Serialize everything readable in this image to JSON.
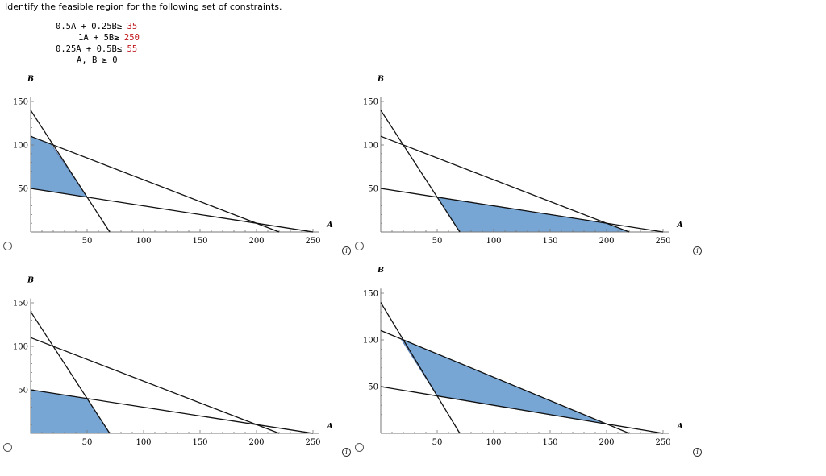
{
  "question": "Identify the feasible region for the following set of constraints.",
  "constraints": [
    {
      "lhs": "0.5A + 0.25B",
      "rel": "≥",
      "rhs": "35"
    },
    {
      "lhs": "1A + 5B",
      "rel": "≥",
      "rhs": "250"
    },
    {
      "lhs": "0.25A + 0.5B",
      "rel": "≤",
      "rhs": "55"
    },
    {
      "lhs": "A, B",
      "rel": "≥",
      "rhs": "0"
    }
  ],
  "options": [
    {
      "selected": false,
      "info_icon": "info-icon"
    },
    {
      "selected": false,
      "info_icon": "info-icon"
    },
    {
      "selected": false,
      "info_icon": "info-icon"
    },
    {
      "selected": false,
      "info_icon": "info-icon"
    }
  ],
  "chart_data": [
    {
      "type": "line",
      "xlabel": "A",
      "ylabel": "B",
      "xlim": [
        0,
        255
      ],
      "ylim": [
        0,
        155
      ],
      "xticks": [
        50,
        100,
        150,
        200,
        250
      ],
      "yticks": [
        50,
        100,
        150
      ],
      "lines": [
        {
          "x": [
            0,
            70
          ],
          "y": [
            140,
            0
          ]
        },
        {
          "x": [
            0,
            250
          ],
          "y": [
            50,
            0
          ]
        },
        {
          "x": [
            0,
            220
          ],
          "y": [
            110,
            0
          ]
        }
      ],
      "shaded_region": {
        "x": [
          0,
          18,
          50,
          0
        ],
        "y": [
          110,
          101,
          40,
          50
        ]
      }
    },
    {
      "type": "line",
      "xlabel": "A",
      "ylabel": "B",
      "xlim": [
        0,
        255
      ],
      "ylim": [
        0,
        155
      ],
      "xticks": [
        50,
        100,
        150,
        200,
        250
      ],
      "yticks": [
        50,
        100,
        150
      ],
      "lines": [
        {
          "x": [
            0,
            70
          ],
          "y": [
            140,
            0
          ]
        },
        {
          "x": [
            0,
            250
          ],
          "y": [
            50,
            0
          ]
        },
        {
          "x": [
            0,
            220
          ],
          "y": [
            110,
            0
          ]
        }
      ],
      "shaded_region": {
        "x": [
          50,
          70,
          220,
          200
        ],
        "y": [
          40,
          0,
          0,
          10
        ]
      }
    },
    {
      "type": "line",
      "xlabel": "A",
      "ylabel": "B",
      "xlim": [
        0,
        255
      ],
      "ylim": [
        0,
        155
      ],
      "xticks": [
        50,
        100,
        150,
        200,
        250
      ],
      "yticks": [
        50,
        100,
        150
      ],
      "lines": [
        {
          "x": [
            0,
            70
          ],
          "y": [
            140,
            0
          ]
        },
        {
          "x": [
            0,
            250
          ],
          "y": [
            50,
            0
          ]
        },
        {
          "x": [
            0,
            220
          ],
          "y": [
            110,
            0
          ]
        }
      ],
      "shaded_region": {
        "x": [
          0,
          50,
          70,
          0
        ],
        "y": [
          50,
          40,
          0,
          0
        ]
      }
    },
    {
      "type": "line",
      "xlabel": "A",
      "ylabel": "B",
      "xlim": [
        0,
        255
      ],
      "ylim": [
        0,
        155
      ],
      "xticks": [
        50,
        100,
        150,
        200,
        250
      ],
      "yticks": [
        50,
        100,
        150
      ],
      "lines": [
        {
          "x": [
            0,
            70
          ],
          "y": [
            140,
            0
          ]
        },
        {
          "x": [
            0,
            250
          ],
          "y": [
            50,
            0
          ]
        },
        {
          "x": [
            0,
            220
          ],
          "y": [
            110,
            0
          ]
        }
      ],
      "shaded_region": {
        "x": [
          18,
          50,
          200
        ],
        "y": [
          101,
          40,
          10
        ]
      }
    }
  ]
}
